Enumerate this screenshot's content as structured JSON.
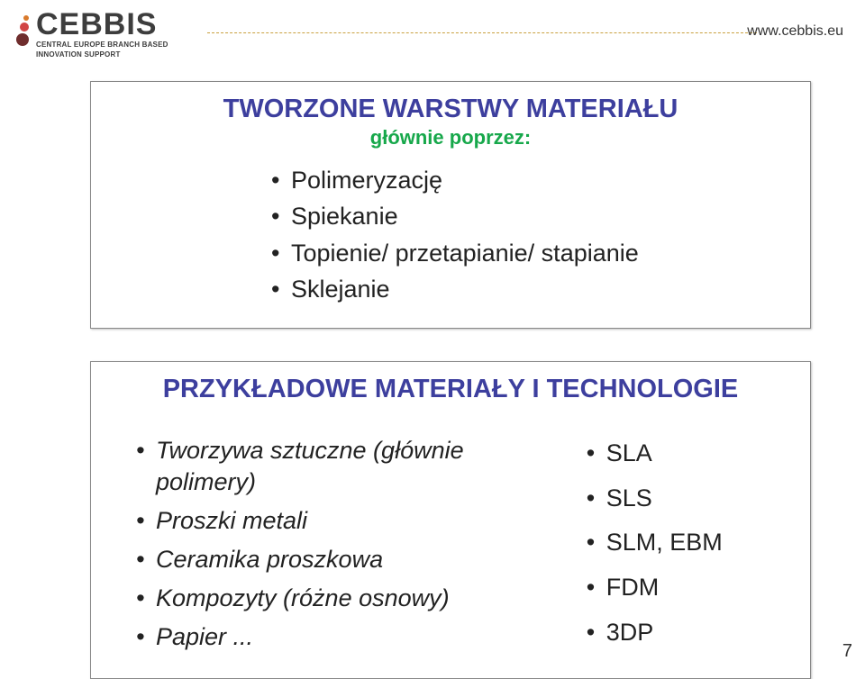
{
  "header": {
    "logo_word": "CEBBIS",
    "logo_sub1": "CENTRAL EUROPE BRANCH BASED",
    "logo_sub2": "INNOVATION SUPPORT",
    "url": "www.cebbis.eu",
    "dot_colors": {
      "tiny": "#d97a2b",
      "small": "#d14545",
      "big": "#6f2d2d"
    },
    "dash_color": "#c9a03f"
  },
  "box1": {
    "title": "TWORZONE WARSTWY MATERIAŁU",
    "subtitle": "głównie poprzez:",
    "items": [
      "Polimeryzację",
      "Spiekanie",
      "Topienie/ przetapianie/ stapianie",
      "Sklejanie"
    ],
    "title_color": "#3d3f9e",
    "subtitle_color": "#17a84b"
  },
  "box2": {
    "title": "PRZYKŁADOWE MATERIAŁY I TECHNOLOGIE",
    "left_items": [
      "Tworzywa sztuczne (głównie polimery)",
      "Proszki metali",
      "Ceramika proszkowa",
      "Kompozyty (różne osnowy)",
      "Papier ..."
    ],
    "right_items": [
      "SLA",
      "SLS",
      "SLM, EBM",
      "FDM",
      "3DP"
    ],
    "title_color": "#3d3f9e"
  },
  "page_number": "7",
  "colors": {
    "background": "#ffffff",
    "border": "#888888",
    "text": "#222222"
  }
}
